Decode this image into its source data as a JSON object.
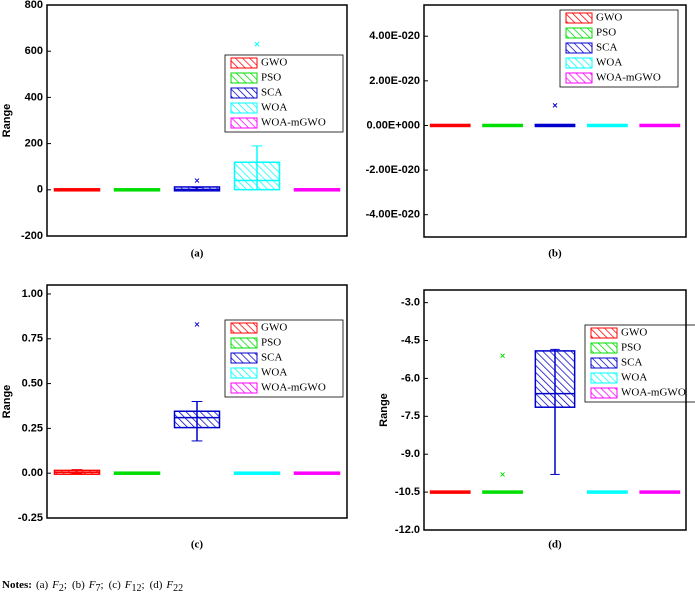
{
  "chart_data": [
    {
      "type": "box",
      "label": "(a)",
      "y_label": "Range",
      "ylim": [
        -200,
        800
      ],
      "yticks": [
        -200,
        0,
        200,
        400,
        600,
        800
      ],
      "legend": "upper right",
      "series": [
        {
          "name": "GWO",
          "color": "#ff0000",
          "min": 0,
          "q1": 0,
          "median": 0,
          "q3": 0,
          "max": 0,
          "outliers": []
        },
        {
          "name": "PSO",
          "color": "#00dd00",
          "min": 0,
          "q1": 0,
          "median": 0,
          "q3": 0,
          "max": 0,
          "outliers": []
        },
        {
          "name": "SCA",
          "color": "#0000cc",
          "min": 0,
          "q1": 0,
          "median": 2,
          "q3": 8,
          "max": 10,
          "outliers": [
            40
          ]
        },
        {
          "name": "WOA",
          "color": "#00ffff",
          "min": 0,
          "q1": 5,
          "median": 40,
          "q3": 115,
          "max": 190,
          "outliers": [
            630
          ]
        },
        {
          "name": "WOA-mGWO",
          "color": "#ff00ff",
          "min": 0,
          "q1": 0,
          "median": 0,
          "q3": 0,
          "max": 0,
          "outliers": []
        }
      ]
    },
    {
      "type": "box",
      "label": "(b)",
      "ylim": [
        -5e-20,
        5.4e-20
      ],
      "yticks": [
        {
          "value": -4e-20,
          "label": "-4.00E-020"
        },
        {
          "value": -2e-20,
          "label": "-2.00E-020"
        },
        {
          "value": 0,
          "label": "0.00E+000"
        },
        {
          "value": 2e-20,
          "label": "2.00E-020"
        },
        {
          "value": 4e-20,
          "label": "4.00E-020"
        }
      ],
      "legend": "upper right",
      "series": [
        {
          "name": "GWO",
          "color": "#ff0000",
          "min": 0,
          "q1": 0,
          "median": 0,
          "q3": 0,
          "max": 0,
          "outliers": []
        },
        {
          "name": "PSO",
          "color": "#00dd00",
          "min": 0,
          "q1": 0,
          "median": 0,
          "q3": 0,
          "max": 0,
          "outliers": []
        },
        {
          "name": "SCA",
          "color": "#0000cc",
          "min": 0,
          "q1": 0,
          "median": 0,
          "q3": 0,
          "max": 0,
          "outliers": [
            9e-21
          ]
        },
        {
          "name": "WOA",
          "color": "#00ffff",
          "min": 0,
          "q1": 0,
          "median": 0,
          "q3": 0,
          "max": 0,
          "outliers": []
        },
        {
          "name": "WOA-mGWO",
          "color": "#ff00ff",
          "min": 0,
          "q1": 0,
          "median": 0,
          "q3": 0,
          "max": 0,
          "outliers": []
        }
      ]
    },
    {
      "type": "box",
      "label": "(c)",
      "y_label": "Range",
      "ylim": [
        -0.25,
        1.05
      ],
      "yticks": [
        {
          "value": -0.25,
          "label": "-0.25"
        },
        {
          "value": 0,
          "label": "0.00"
        },
        {
          "value": 0.25,
          "label": "0.25"
        },
        {
          "value": 0.5,
          "label": "0.50"
        },
        {
          "value": 0.75,
          "label": "0.75"
        },
        {
          "value": 1,
          "label": "1.00"
        }
      ],
      "legend": "upper right",
      "series": [
        {
          "name": "GWO",
          "color": "#ff0000",
          "min": 0,
          "q1": 0,
          "median": 0.005,
          "q3": 0.01,
          "max": 0.02,
          "outliers": []
        },
        {
          "name": "PSO",
          "color": "#00dd00",
          "min": 0,
          "q1": 0,
          "median": 0,
          "q3": 0,
          "max": 0,
          "outliers": []
        },
        {
          "name": "SCA",
          "color": "#0000cc",
          "min": 0.18,
          "q1": 0.26,
          "median": 0.31,
          "q3": 0.34,
          "max": 0.4,
          "outliers": [
            0.83
          ]
        },
        {
          "name": "WOA",
          "color": "#00ffff",
          "min": 0,
          "q1": 0,
          "median": 0,
          "q3": 0,
          "max": 0,
          "outliers": []
        },
        {
          "name": "WOA-mGWO",
          "color": "#ff00ff",
          "min": 0,
          "q1": 0,
          "median": 0,
          "q3": 0,
          "max": 0,
          "outliers": []
        }
      ]
    },
    {
      "type": "box",
      "label": "(d)",
      "y_label": "Range",
      "ylim": [
        -12,
        -2.5
      ],
      "yticks": [
        {
          "value": -12,
          "label": "-12.0"
        },
        {
          "value": -10.5,
          "label": "-10.5"
        },
        {
          "value": -9,
          "label": "-9.0"
        },
        {
          "value": -7.5,
          "label": "-7.5"
        },
        {
          "value": -6,
          "label": "-6.0"
        },
        {
          "value": -4.5,
          "label": "-4.5"
        },
        {
          "value": -3,
          "label": "-3.0"
        }
      ],
      "legend": "upper right",
      "series": [
        {
          "name": "GWO",
          "color": "#ff0000",
          "min": -10.5,
          "q1": -10.5,
          "median": -10.5,
          "q3": -10.5,
          "max": -10.5,
          "outliers": []
        },
        {
          "name": "PSO",
          "color": "#00dd00",
          "min": -10.5,
          "q1": -10.5,
          "median": -10.5,
          "q3": -10.5,
          "max": -10.5,
          "outliers": [
            -5.1,
            -9.8
          ]
        },
        {
          "name": "SCA",
          "color": "#0000cc",
          "min": -9.8,
          "q1": -7.1,
          "median": -6.6,
          "q3": -4.95,
          "max": -4.85,
          "outliers": []
        },
        {
          "name": "WOA",
          "color": "#00ffff",
          "min": -10.5,
          "q1": -10.5,
          "median": -10.5,
          "q3": -10.5,
          "max": -10.5,
          "outliers": []
        },
        {
          "name": "WOA-mGWO",
          "color": "#ff00ff",
          "min": -10.5,
          "q1": -10.5,
          "median": -10.5,
          "q3": -10.5,
          "max": -10.5,
          "outliers": []
        }
      ]
    }
  ],
  "notes": {
    "label": "Notes:",
    "items": [
      {
        "tag": "(a)",
        "f": "F",
        "sub": "2"
      },
      {
        "tag": "(b)",
        "f": "F",
        "sub": "7"
      },
      {
        "tag": "(c)",
        "f": "F",
        "sub": "12"
      },
      {
        "tag": "(d)",
        "f": "F",
        "sub": "22"
      }
    ]
  }
}
